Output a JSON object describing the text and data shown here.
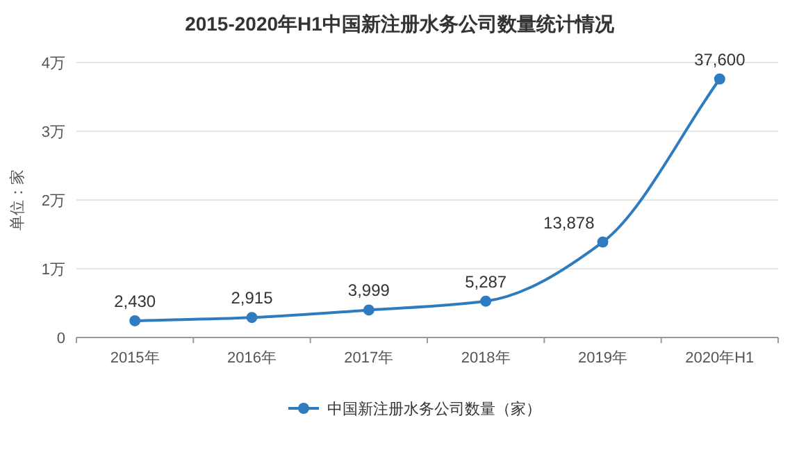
{
  "chart_data": {
    "type": "line",
    "title": "2015-2020年H1中国新注册水务公司数量统计情况",
    "ylabel": "单位：家",
    "categories": [
      "2015年",
      "2016年",
      "2017年",
      "2018年",
      "2019年",
      "2020年H1"
    ],
    "series": [
      {
        "name": "中国新注册水务公司数量（家）",
        "color": "#2e7bbf",
        "values": [
          0.243,
          0.2915,
          0.3999,
          0.5287,
          1.3878,
          3.76
        ]
      }
    ],
    "value_labels": [
      "2,430",
      "2,915",
      "3,999",
      "5,287",
      "13,878",
      "37,600"
    ],
    "ylim": [
      0,
      4
    ],
    "yticks": [
      0,
      {
        "value": 1,
        "label": "1万"
      },
      {
        "value": 2,
        "label": "2万"
      },
      {
        "value": 3,
        "label": "3万"
      },
      {
        "value": 4,
        "label": "4万"
      }
    ],
    "grid": "y",
    "legend": "bottom",
    "marker": "circle",
    "line_style": "solid"
  }
}
